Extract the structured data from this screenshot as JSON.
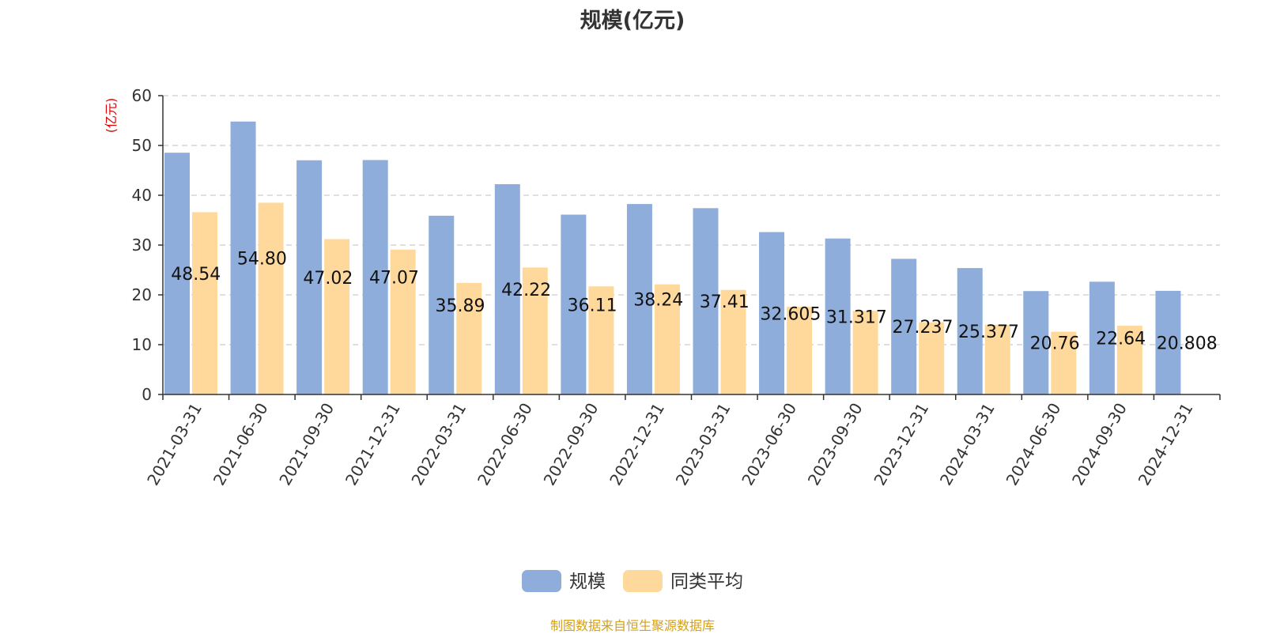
{
  "chart_data": {
    "type": "bar",
    "title": "规模(亿元)",
    "ylabel": "(亿元)",
    "xlabel": "",
    "ylim": [
      0,
      60
    ],
    "yticks": [
      0,
      10,
      20,
      30,
      40,
      50,
      60
    ],
    "grid": true,
    "legend_position": "bottom-center",
    "categories": [
      "2021-03-31",
      "2021-06-30",
      "2021-09-30",
      "2021-12-31",
      "2022-03-31",
      "2022-06-30",
      "2022-09-30",
      "2022-12-31",
      "2023-03-31",
      "2023-06-30",
      "2023-09-30",
      "2023-12-31",
      "2024-03-31",
      "2024-06-30",
      "2024-09-30",
      "2024-12-31"
    ],
    "series": [
      {
        "name": "规模",
        "color": "#8eadda",
        "values": [
          48.54,
          54.8,
          47.02,
          47.07,
          35.89,
          42.22,
          36.11,
          38.24,
          37.41,
          32.605,
          31.317,
          27.237,
          25.377,
          20.76,
          22.64,
          20.808
        ],
        "labels": [
          "48.54",
          "54.80",
          "47.02",
          "47.07",
          "35.89",
          "42.22",
          "36.11",
          "38.24",
          "37.41",
          "32.605",
          "31.317",
          "27.237",
          "25.377",
          "20.76",
          "22.64",
          "20.808"
        ]
      },
      {
        "name": "同类平均",
        "color": "#ffd99b",
        "values": [
          36.6,
          38.5,
          31.2,
          29.1,
          22.4,
          25.5,
          21.7,
          22.1,
          21.0,
          17.6,
          16.8,
          14.5,
          14.0,
          12.6,
          13.8,
          null
        ]
      }
    ]
  },
  "footer": {
    "source_text": "制图数据来自恒生聚源数据库"
  }
}
